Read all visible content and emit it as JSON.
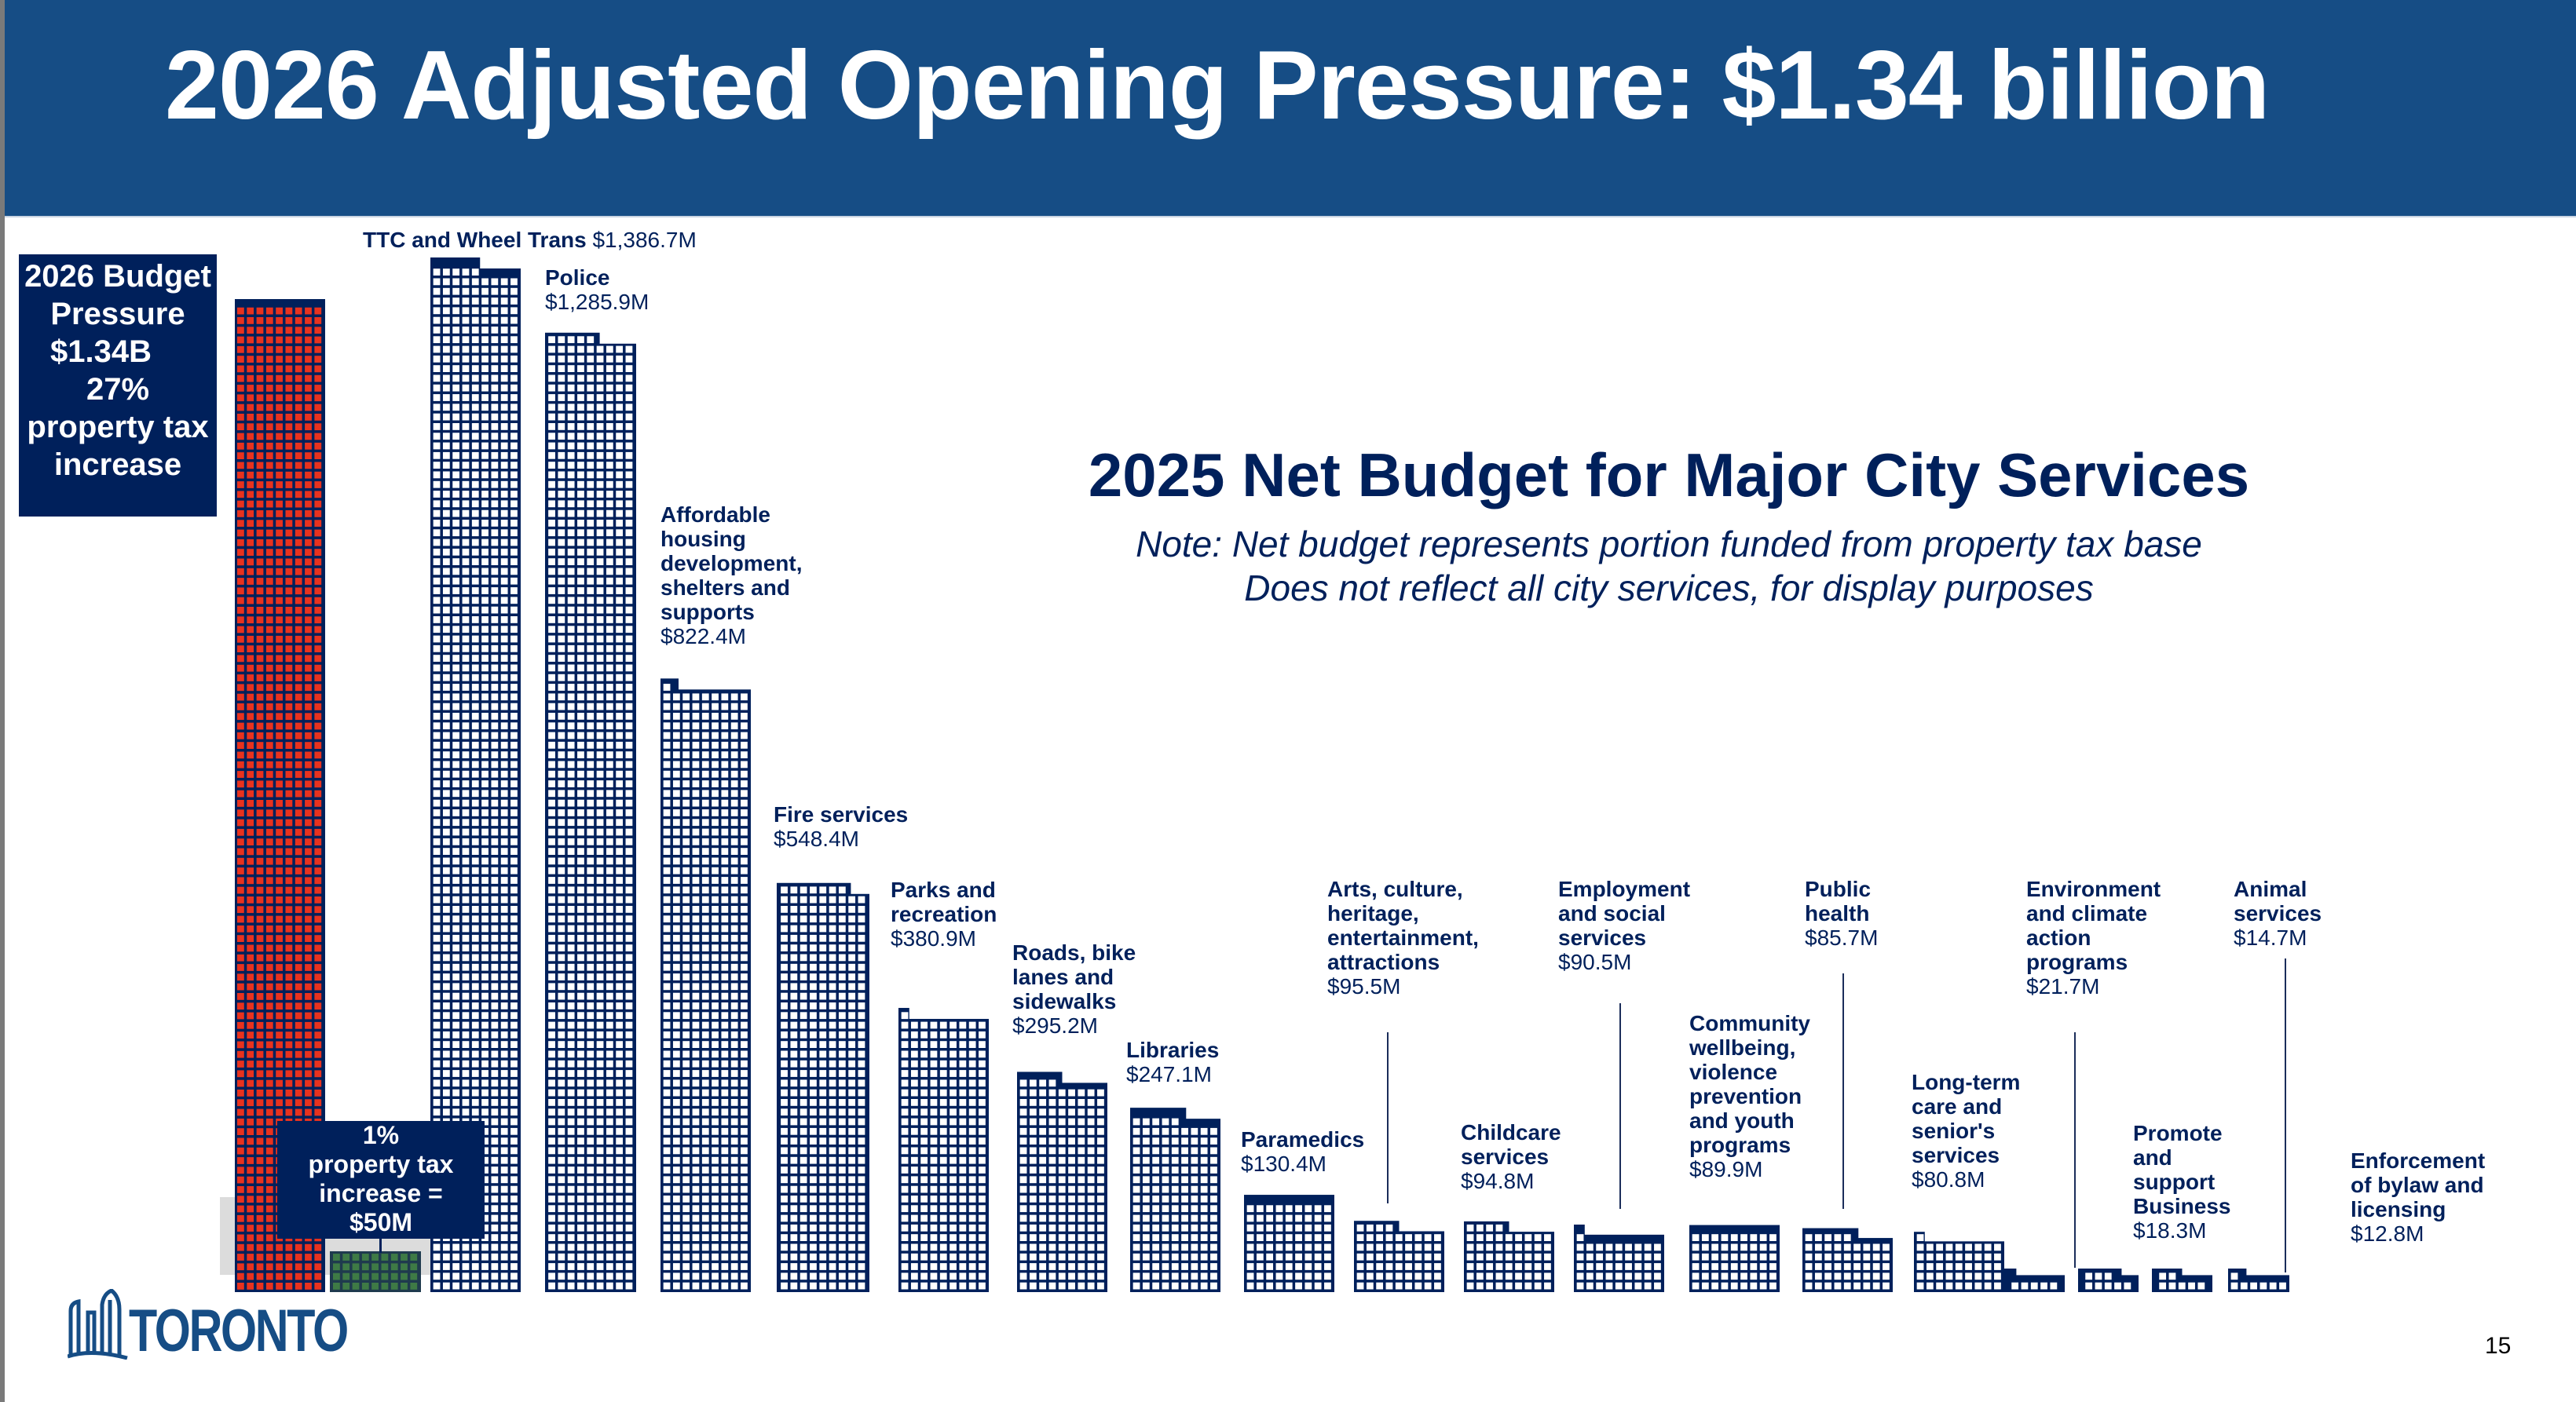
{
  "slide": {
    "title": "2026 Adjusted Opening Pressure: $1.34 billion",
    "page_number": "15",
    "logo_text": "TORONTO"
  },
  "pressure_box": {
    "lines": [
      "2026 Budget",
      "Pressure",
      "$1.34B",
      "27%",
      "property tax",
      "increase"
    ]
  },
  "one_percent_box": {
    "lines": [
      "1%",
      "property tax",
      "increase =",
      "$50M"
    ]
  },
  "colors": {
    "header": "#164d85",
    "navy": "#00205b",
    "pressure_red": "#e8321e",
    "one_percent_green": "#3e7a45"
  },
  "chart_data": {
    "type": "bar",
    "title": "2025 Net Budget for Major City Services",
    "notes": [
      "Note: Net budget represents portion funded from property tax base",
      "Does not reflect all city services, for display purposes"
    ],
    "units": "$M",
    "pressure": {
      "name": "2026 Budget Pressure",
      "value": 1340,
      "label": "$1.34B"
    },
    "one_percent": {
      "name": "1% property tax increase",
      "value": 50,
      "label": "$50M"
    },
    "categories": [
      "TTC and Wheel Trans",
      "Police",
      "Affordable housing development, shelters and supports",
      "Fire services",
      "Parks and recreation",
      "Roads, bike lanes and sidewalks",
      "Libraries",
      "Paramedics",
      "Arts, culture, heritage, entertainment, attractions",
      "Childcare services",
      "Employment and social services",
      "Community wellbeing, violence prevention and youth programs",
      "Public health",
      "Long-term care and senior's services",
      "Environment and climate action programs",
      "Promote and support Business",
      "Animal services",
      "Enforcement of bylaw and licensing"
    ],
    "values": [
      1386.7,
      1285.9,
      822.4,
      548.4,
      380.9,
      295.2,
      247.1,
      130.4,
      95.5,
      94.8,
      90.5,
      89.9,
      85.7,
      80.8,
      21.7,
      18.3,
      14.7,
      12.8
    ],
    "labels": [
      {
        "name_lines": [
          "TTC and Wheel Trans"
        ],
        "value": "$1,386.7M"
      },
      {
        "name_lines": [
          "Police"
        ],
        "value": "$1,285.9M"
      },
      {
        "name_lines": [
          "Affordable",
          "housing",
          "development,",
          "shelters and",
          "supports"
        ],
        "value": "$822.4M"
      },
      {
        "name_lines": [
          "Fire services"
        ],
        "value": "$548.4M"
      },
      {
        "name_lines": [
          "Parks and",
          "recreation"
        ],
        "value": "$380.9M"
      },
      {
        "name_lines": [
          "Roads, bike",
          "lanes and",
          "sidewalks"
        ],
        "value": "$295.2M"
      },
      {
        "name_lines": [
          "Libraries"
        ],
        "value": "$247.1M"
      },
      {
        "name_lines": [
          "Paramedics"
        ],
        "value": "$130.4M"
      },
      {
        "name_lines": [
          "Arts, culture,",
          "heritage,",
          "entertainment,",
          "attractions"
        ],
        "value": "$95.5M"
      },
      {
        "name_lines": [
          "Childcare",
          "services"
        ],
        "value": "$94.8M"
      },
      {
        "name_lines": [
          "Employment",
          "and social",
          "services"
        ],
        "value": "$90.5M"
      },
      {
        "name_lines": [
          "Community",
          "wellbeing,",
          "violence",
          "prevention",
          "and youth",
          "programs"
        ],
        "value": "$89.9M"
      },
      {
        "name_lines": [
          "Public",
          "health"
        ],
        "value": "$85.7M"
      },
      {
        "name_lines": [
          "Long-term",
          "care and",
          "senior's",
          "services"
        ],
        "value": "$80.8M"
      },
      {
        "name_lines": [
          "Environment",
          "and climate",
          "action",
          "programs"
        ],
        "value": "$21.7M"
      },
      {
        "name_lines": [
          "Promote",
          "and",
          "support",
          "Business"
        ],
        "value": "$18.3M"
      },
      {
        "name_lines": [
          "Animal",
          "services"
        ],
        "value": "$14.7M"
      },
      {
        "name_lines": [
          "Enforcement",
          "of bylaw and",
          "licensing"
        ],
        "value": "$12.8M"
      }
    ]
  }
}
